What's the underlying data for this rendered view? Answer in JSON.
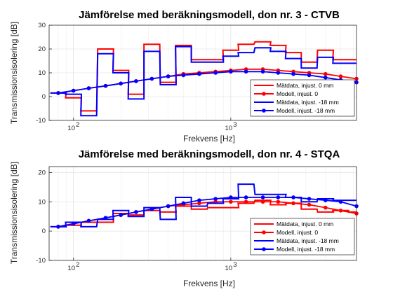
{
  "chart_data": [
    {
      "type": "line",
      "title": "Jämförelse med beräkningsmodell, don nr. 3 - CTVB",
      "xlabel": "Frekvens [Hz]",
      "ylabel": "Transmissionsisolering [dB]",
      "xscale": "log",
      "xlim": [
        70,
        6300
      ],
      "ylim": [
        -10,
        30
      ],
      "yticks": [
        -10,
        0,
        10,
        20,
        30
      ],
      "xticks": [
        {
          "value": 100,
          "label": "10",
          "exp": "2"
        },
        {
          "value": 1000,
          "label": "10",
          "exp": "3"
        }
      ],
      "grid": true,
      "legend_position": "bottom-right",
      "x": [
        80,
        100,
        125,
        160,
        200,
        250,
        315,
        400,
        500,
        630,
        800,
        1000,
        1250,
        1600,
        2000,
        2500,
        3150,
        4000,
        5000,
        6300
      ],
      "series": [
        {
          "name": "Mätdata, injust. 0 mm",
          "style": "step",
          "color": "#ff0000",
          "values": [
            1.5,
            -0.5,
            -6,
            20,
            11,
            1,
            22,
            6,
            21.5,
            15.5,
            15.5,
            19.5,
            22,
            23,
            21.5,
            18.5,
            14.5,
            19.5,
            15.5,
            15.5
          ]
        },
        {
          "name": "Modell, injust. 0",
          "style": "marker",
          "color": "#ff0000",
          "values": [
            1.5,
            2.5,
            3.5,
            4.5,
            5.5,
            6.5,
            7.5,
            8.5,
            9.5,
            10,
            10.5,
            11,
            11.5,
            11.5,
            11,
            10.5,
            10,
            9.5,
            8.5,
            7.5
          ]
        },
        {
          "name": "Mätdata, injust. -18 mm",
          "style": "step",
          "color": "#0000ff",
          "values": [
            1.5,
            1,
            -8,
            18,
            10,
            -1,
            19,
            5,
            21,
            14.5,
            14.5,
            17,
            18.5,
            20.5,
            19,
            16,
            12,
            16.5,
            14,
            14
          ]
        },
        {
          "name": "Modell, injust. -18 mm",
          "style": "marker",
          "color": "#0000ff",
          "values": [
            1.5,
            2.5,
            3.5,
            4.5,
            5.5,
            6.5,
            7.5,
            8.5,
            9,
            9.5,
            10,
            10.5,
            10.5,
            10.5,
            10,
            9.5,
            9,
            8,
            7,
            6
          ]
        }
      ]
    },
    {
      "type": "line",
      "title": "Jämförelse med beräkningsmodell, don nr. 4 - STQA",
      "xlabel": "Frekvens [Hz]",
      "ylabel": "Transmissionsisolering [dB]",
      "xscale": "log",
      "xlim": [
        70,
        6300
      ],
      "ylim": [
        -10,
        22
      ],
      "yticks": [
        -10,
        0,
        10,
        20
      ],
      "xticks": [
        {
          "value": 100,
          "label": "10",
          "exp": "2"
        },
        {
          "value": 1000,
          "label": "10",
          "exp": "3"
        }
      ],
      "grid": true,
      "legend_position": "bottom-right",
      "x": [
        80,
        100,
        125,
        160,
        200,
        250,
        315,
        400,
        500,
        630,
        800,
        1000,
        1250,
        1600,
        2000,
        2500,
        3150,
        4000,
        5000,
        6300
      ],
      "series": [
        {
          "name": "Mätdata, injust. 0 mm",
          "style": "step",
          "color": "#ff0000",
          "values": [
            1.5,
            2,
            3,
            3,
            6,
            5.5,
            7,
            6.5,
            8.5,
            7.5,
            8,
            8,
            9.5,
            10.5,
            9,
            9.5,
            7.5,
            6.5,
            7,
            6.5
          ]
        },
        {
          "name": "Modell, injust. 0",
          "style": "marker",
          "color": "#ff0000",
          "values": [
            1.5,
            2.5,
            3.5,
            4.5,
            5.5,
            6.5,
            7.5,
            8.5,
            9,
            9.5,
            10,
            10,
            10,
            10,
            10,
            9.5,
            9,
            8,
            7,
            6
          ]
        },
        {
          "name": "Mätdata, injust. -18 mm",
          "style": "step",
          "color": "#0000ff",
          "values": [
            1.5,
            3,
            1.5,
            4,
            7,
            5,
            8,
            4,
            11.5,
            8.5,
            9.5,
            11,
            16,
            12.5,
            12.5,
            11.5,
            10,
            11,
            10.5,
            10.5
          ]
        },
        {
          "name": "Modell, injust. -18 mm",
          "style": "marker",
          "color": "#0000ff",
          "values": [
            1.5,
            2.5,
            3.5,
            4.5,
            5.5,
            6.5,
            7.5,
            8.5,
            9.5,
            10.5,
            11,
            11.5,
            11.5,
            11.5,
            11.5,
            11.5,
            11,
            10.5,
            10,
            8.5
          ]
        }
      ]
    }
  ]
}
